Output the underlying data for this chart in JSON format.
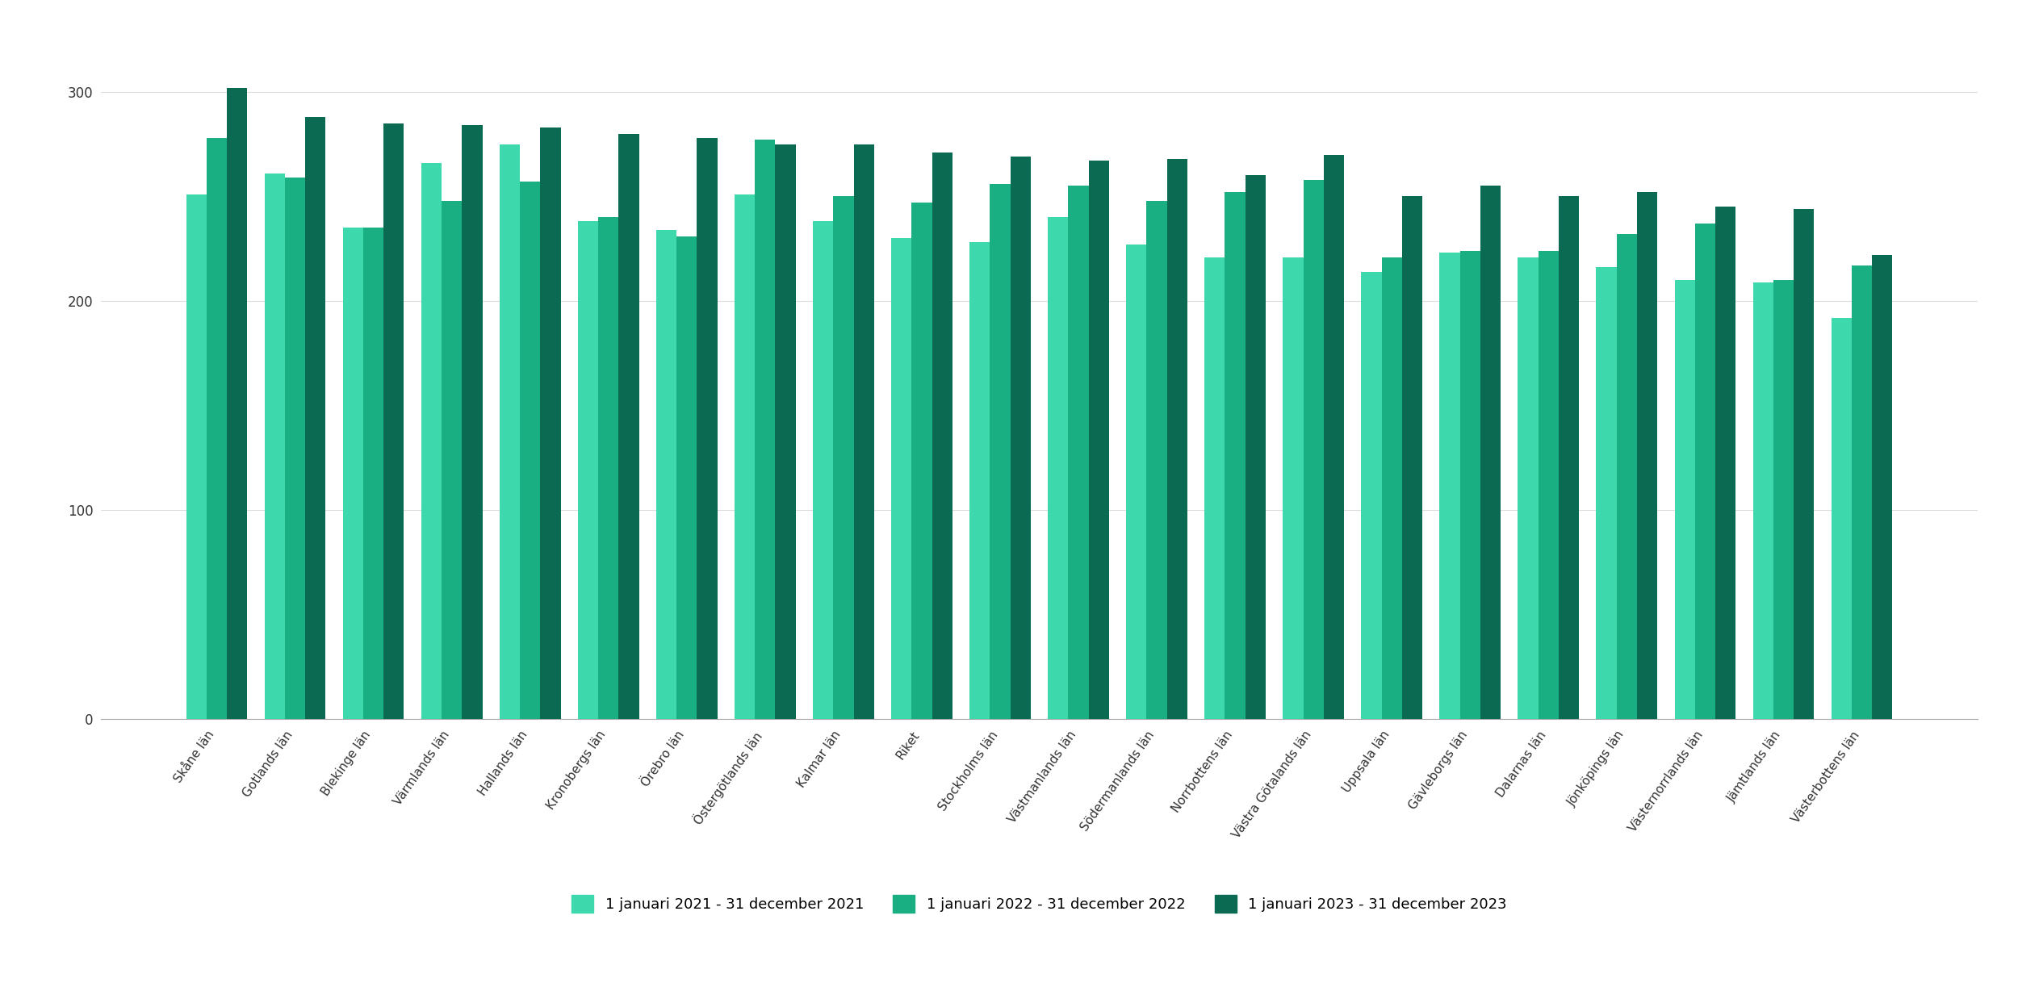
{
  "categories": [
    "Skåne län",
    "Gotlands län",
    "Blekinge län",
    "Värmlands län",
    "Hallands län",
    "Kronobergs län",
    "Örebro län",
    "Östergötlands län",
    "Kalmar län",
    "Riket",
    "Stockholms län",
    "Västmanlands län",
    "Södermanlands län",
    "Norrbottens län",
    "Västra Götalands län",
    "Uppsala län",
    "Gävleborgs län",
    "Dalarnas län",
    "Jönköpings län",
    "Västernorrlands län",
    "Jämtlands län",
    "Västerbottens län"
  ],
  "series": {
    "2021": [
      251,
      261,
      235,
      266,
      275,
      238,
      234,
      251,
      238,
      230,
      228,
      240,
      227,
      221,
      221,
      214,
      223,
      221,
      216,
      210,
      209,
      192
    ],
    "2022": [
      278,
      259,
      235,
      248,
      257,
      240,
      231,
      277,
      250,
      247,
      256,
      255,
      248,
      252,
      258,
      221,
      224,
      224,
      232,
      237,
      210,
      217
    ],
    "2023": [
      302,
      288,
      285,
      284,
      283,
      280,
      278,
      275,
      275,
      271,
      269,
      267,
      268,
      260,
      270,
      250,
      255,
      250,
      252,
      245,
      244,
      222
    ]
  },
  "colors": {
    "2021": "#3DD9AC",
    "2022": "#1AAF82",
    "2023": "#0A6B52"
  },
  "legend_labels": {
    "2021": "1 januari 2021 - 31 december 2021",
    "2022": "1 januari 2022 - 31 december 2022",
    "2023": "1 januari 2023 - 31 december 2023"
  },
  "ylim": [
    0,
    320
  ],
  "yticks": [
    0,
    100,
    200,
    300
  ],
  "background_color": "#ffffff",
  "grid_color": "#dddddd",
  "bar_width": 0.26,
  "xlabel_fontsize": 11,
  "ylabel_fontsize": 12,
  "legend_fontsize": 13
}
